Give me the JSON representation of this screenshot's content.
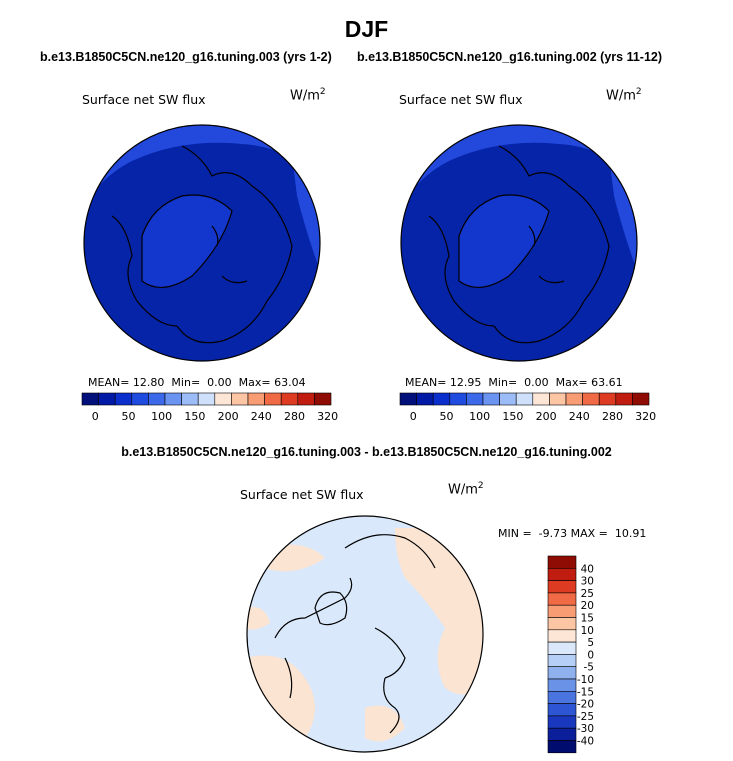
{
  "season": "DJF",
  "panels": [
    {
      "case": "b.e13.B1850C5CN.ne120_g16.tuning.003 (yrs 1-2)",
      "variable": "Surface net SW flux",
      "units_base": "W/m",
      "units_exp": "2",
      "stats": {
        "mean_label": "MEAN=",
        "mean": "12.80",
        "min_label": "Min=",
        "min": "0.00",
        "max_label": "Max=",
        "max": "63.04"
      }
    },
    {
      "case": "b.e13.B1850C5CN.ne120_g16.tuning.002 (yrs 11-12)",
      "variable": "Surface net SW flux",
      "units_base": "W/m",
      "units_exp": "2",
      "stats": {
        "mean_label": "MEAN=",
        "mean": "12.95",
        "min_label": "Min=",
        "min": "0.00",
        "max_label": "Max=",
        "max": "63.61"
      }
    }
  ],
  "abs_colorbar": {
    "colors": [
      "#000f7a",
      "#001aa6",
      "#0b2fcc",
      "#1f4bdf",
      "#3c69ea",
      "#6a93f2",
      "#9cbcf8",
      "#cfe0fc",
      "#fde6d6",
      "#fcc6a5",
      "#f89c74",
      "#ef6a45",
      "#de3c22",
      "#c01c10",
      "#8e0c04"
    ],
    "labels": [
      "0",
      "50",
      "100",
      "150",
      "200",
      "240",
      "280",
      "320"
    ]
  },
  "diff": {
    "case": "b.e13.B1850C5CN.ne120_g16.tuning.003 - b.e13.B1850C5CN.ne120_g16.tuning.002",
    "variable": "Surface net SW flux",
    "units_base": "W/m",
    "units_exp": "2",
    "minmax": "MIN =  -9.73 MAX =  10.91",
    "colorbar": {
      "colors": [
        "#8e0c04",
        "#c01c10",
        "#de3c22",
        "#ef6a45",
        "#f89c74",
        "#fcc6a5",
        "#fde6d6",
        "#dbe8fb",
        "#b5cff6",
        "#8fb2ef",
        "#6a93e8",
        "#4a74e0",
        "#2e55d4",
        "#1a38bd",
        "#0c1f9a",
        "#000d6e"
      ],
      "labels": [
        "40",
        "30",
        "25",
        "20",
        "15",
        "10",
        "5",
        "0",
        "-5",
        "-10",
        "-15",
        "-20",
        "-25",
        "-30",
        "-40"
      ]
    }
  },
  "map_colors": {
    "ocean_deep": "#0624a8",
    "land_blue": "#1336cc",
    "rim_blue": "#2248dc",
    "diff_blue": "#d9e8fb",
    "diff_orange": "#fbe4d2"
  }
}
